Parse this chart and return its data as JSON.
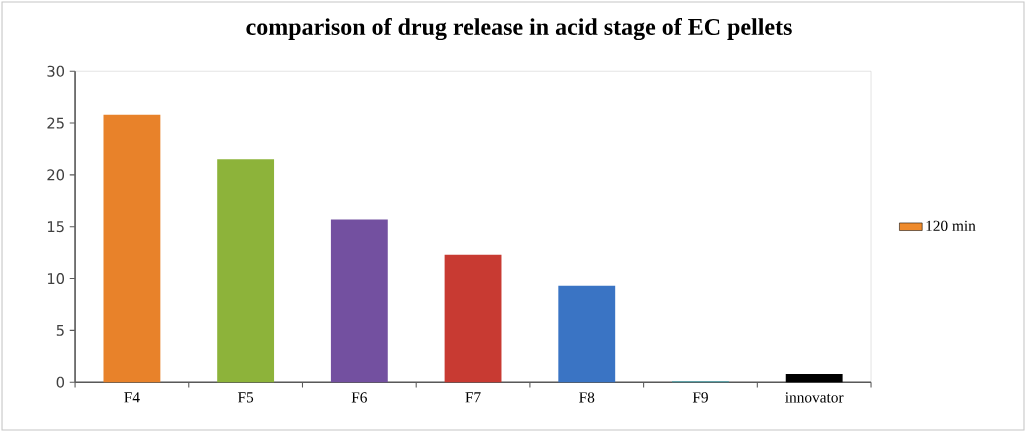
{
  "chart_data": {
    "type": "bar",
    "title": "comparison of drug release in acid stage of EC pellets",
    "categories": [
      "F4",
      "F5",
      "F6",
      "F7",
      "F8",
      "F9",
      "innovator"
    ],
    "series": [
      {
        "name": "120 min",
        "color": "#ee8a2c",
        "colors": [
          "#e8822a",
          "#8db33a",
          "#7350a0",
          "#c83a32",
          "#3a74c4",
          "#4aa0a8",
          "#000000"
        ],
        "values": [
          25.8,
          21.5,
          15.7,
          12.3,
          9.3,
          0.1,
          0.8
        ]
      }
    ],
    "ylim": [
      0,
      30
    ],
    "yticks": [
      0,
      5,
      10,
      15,
      20,
      25,
      30
    ],
    "grid": false,
    "legend": "right"
  }
}
